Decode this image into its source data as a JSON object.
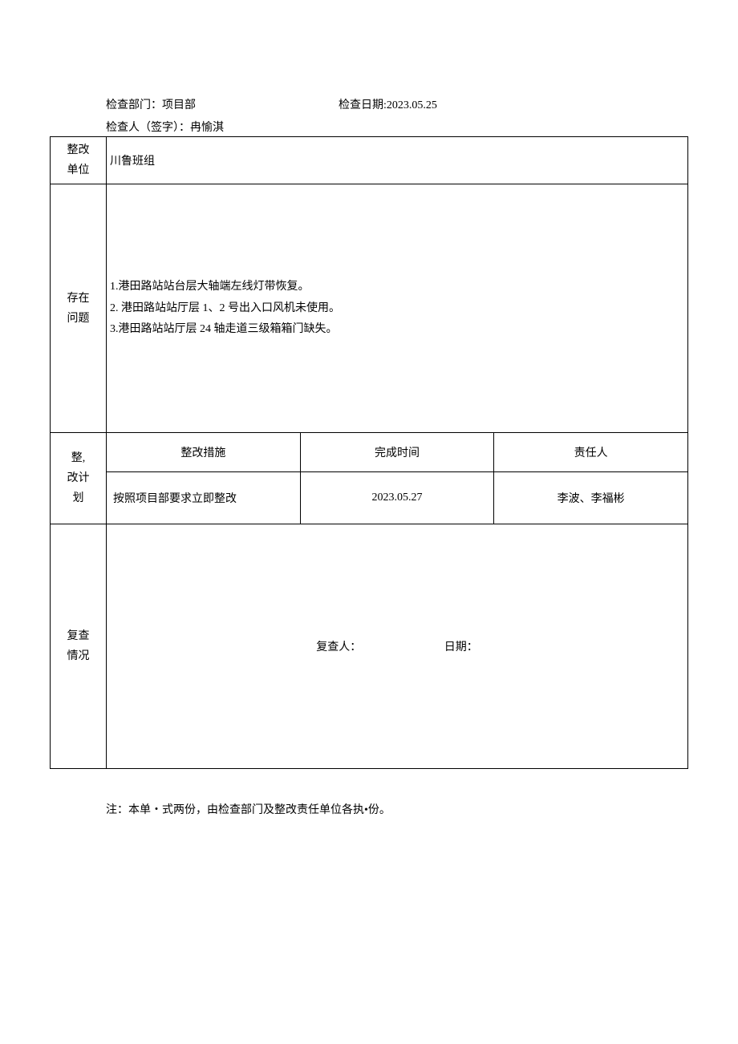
{
  "header": {
    "dept_label": "检查部门：项目部",
    "date_label": "检查日期:2023.05.25",
    "signer_label": "检查人（签字）：冉愉淇"
  },
  "unit_row": {
    "label_line1": "整改",
    "label_line2": "单位",
    "value": "川鲁班组"
  },
  "issues": {
    "label_line1": "存在",
    "label_line2": "问题",
    "item1": "1.港田路站站台层大轴端左线灯带恢复。",
    "item2": "2. 港田路站站厅层 1、2 号出入口风机未使用。",
    "item3": "3.港田路站站厅层 24 轴走道三级箱箱门缺失。"
  },
  "plan": {
    "label_line1": "整,",
    "label_line2": "改计",
    "label_line3": "划",
    "col_measure": "整改措施",
    "col_time": "完成时间",
    "col_person": "责任人",
    "measure_value": "按照项目部要求立即整改",
    "time_value": "2023.05.27",
    "person_value": "李波、李福彬"
  },
  "review": {
    "label_line1": "复查",
    "label_line2": "情况",
    "reviewer_label": "复查人：",
    "date_label": "日期："
  },
  "note": "注：本单・式两份，由检查部门及整改责任单位各执•份。"
}
